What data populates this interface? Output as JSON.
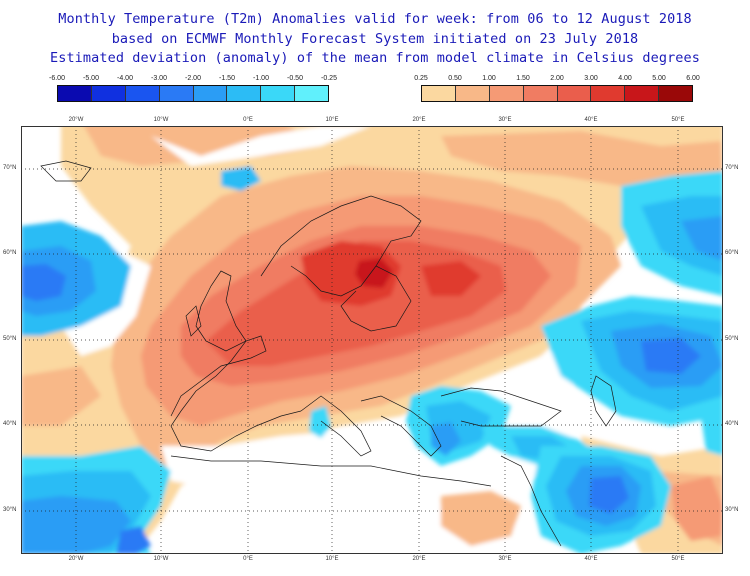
{
  "header": {
    "line1": "Monthly Temperature (T2m) Anomalies valid for week: from 06 to 12 August 2018",
    "line2": "based on ECMWF Monthly Forecast System initiated on 23 July 2018",
    "line3": "Estimated deviation (anomaly) of the mean from model climate in Celsius degrees"
  },
  "legend_cold": {
    "labels": [
      "-6.00",
      "-5.00",
      "-4.00",
      "-3.00",
      "-2.00",
      "-1.50",
      "-1.00",
      "-0.50",
      "-0.25"
    ],
    "colors": [
      "#0a0ab0",
      "#1030e0",
      "#1a55f0",
      "#2a7af5",
      "#2b9df5",
      "#2cbcf5",
      "#3ad8f8",
      "#60f0fc"
    ]
  },
  "legend_warm": {
    "labels": [
      "0.25",
      "0.50",
      "1.00",
      "1.50",
      "2.00",
      "3.00",
      "4.00",
      "5.00",
      "6.00"
    ],
    "colors": [
      "#fbd8a0",
      "#f8b888",
      "#f59a75",
      "#f07c62",
      "#ea5e4c",
      "#e03a2f",
      "#c8161a",
      "#9a0808"
    ]
  },
  "axes": {
    "lon_labels": [
      "20°W",
      "10°W",
      "0°E",
      "10°E",
      "20°E",
      "30°E",
      "40°E",
      "50°E"
    ],
    "lat_labels": [
      "70°N",
      "60°N",
      "50°N",
      "40°N",
      "30°N"
    ]
  },
  "colors": {
    "title": "#1a1ab8",
    "grid": "#222222",
    "coast": "#1a1a1a"
  }
}
